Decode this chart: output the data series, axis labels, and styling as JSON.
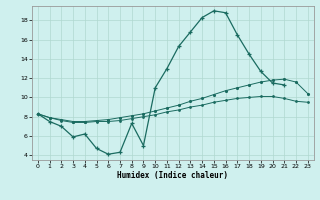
{
  "xlabel": "Humidex (Indice chaleur)",
  "background_color": "#cff0ee",
  "grid_color": "#b0d8d0",
  "line_color": "#1a6b60",
  "xlim": [
    -0.5,
    23.5
  ],
  "ylim": [
    3.5,
    19.5
  ],
  "xticks": [
    0,
    1,
    2,
    3,
    4,
    5,
    6,
    7,
    8,
    9,
    10,
    11,
    12,
    13,
    14,
    15,
    16,
    17,
    18,
    19,
    20,
    21,
    22,
    23
  ],
  "yticks": [
    4,
    6,
    8,
    10,
    12,
    14,
    16,
    18
  ],
  "line1_x": [
    0,
    1,
    2,
    3,
    4,
    5,
    6,
    7,
    8,
    9,
    10,
    11,
    12,
    13,
    14,
    15,
    16,
    17,
    18,
    19,
    20,
    21
  ],
  "line1_y": [
    8.3,
    7.5,
    7.0,
    5.9,
    6.2,
    4.7,
    4.1,
    4.3,
    7.3,
    5.0,
    11.0,
    13.0,
    15.3,
    16.8,
    18.3,
    19.0,
    18.8,
    16.5,
    14.5,
    12.7,
    11.5,
    11.3
  ],
  "line2_x": [
    0,
    1,
    2,
    3,
    4,
    5,
    6,
    7,
    8,
    9,
    10,
    11,
    12,
    13,
    14,
    15,
    16,
    17,
    18,
    19,
    20,
    21,
    22,
    23
  ],
  "line2_y": [
    8.3,
    7.9,
    7.7,
    7.5,
    7.5,
    7.6,
    7.7,
    7.9,
    8.1,
    8.3,
    8.6,
    8.9,
    9.2,
    9.6,
    9.9,
    10.3,
    10.7,
    11.0,
    11.3,
    11.6,
    11.8,
    11.9,
    11.6,
    10.4
  ],
  "line3_x": [
    0,
    1,
    2,
    3,
    4,
    5,
    6,
    7,
    8,
    9,
    10,
    11,
    12,
    13,
    14,
    15,
    16,
    17,
    18,
    19,
    20,
    21,
    22,
    23
  ],
  "line3_y": [
    8.3,
    7.9,
    7.6,
    7.4,
    7.4,
    7.5,
    7.5,
    7.6,
    7.8,
    8.0,
    8.2,
    8.5,
    8.7,
    9.0,
    9.2,
    9.5,
    9.7,
    9.9,
    10.0,
    10.1,
    10.1,
    9.9,
    9.6,
    9.5
  ]
}
